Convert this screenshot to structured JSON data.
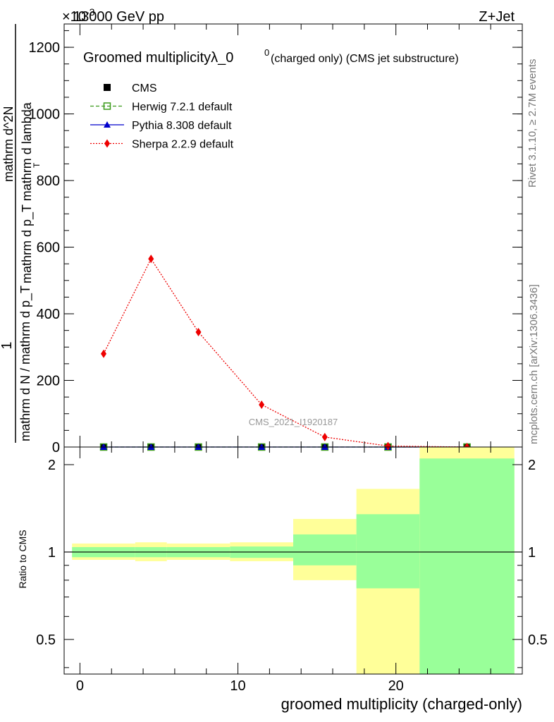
{
  "header": {
    "left": "13000 GeV pp",
    "right": "Z+Jet",
    "exponent_base": "×10",
    "exponent_power": "-3"
  },
  "title": {
    "main": "Groomed multiplicityλ_0",
    "sup": "0",
    "suffix": " (charged only) (CMS jet substructure)"
  },
  "side_labels": {
    "rivet": "Rivet 3.1.10, ≥ 2.7M events",
    "mcplots": "mcplots.cern.ch [arXiv:1306.3436]"
  },
  "watermark": "CMS_2021_I1920187",
  "colors": {
    "cms": "#000000",
    "herwig": "#3a9a1a",
    "pythia": "#0000cc",
    "sherpa": "#ee0000",
    "band_outer": "#ffff99",
    "band_inner": "#99ff99"
  },
  "chart_data": [
    {
      "type": "scatter",
      "panel": "main",
      "ylabel_numerator": "1",
      "ylabel_denominator": "mathrm d N / mathrm d p_T",
      "ylabel_top": "mathrm d^2N",
      "ylabel_bottom": "mathrm d p_T mathrm d lambda",
      "ylabel_sub": "T",
      "ylim": [
        0,
        1270
      ],
      "yticks": [
        0,
        200,
        400,
        600,
        800,
        1000,
        1200
      ],
      "ytick_labels": [
        "0",
        "200",
        "400",
        "600",
        "800",
        "1000",
        "1200"
      ],
      "xlim": [
        -1,
        28
      ],
      "legend_position": "top-left",
      "series": [
        {
          "name": "CMS",
          "key": "cms",
          "marker": "square-filled",
          "x": [
            1.5,
            4.5,
            7.5,
            11.5,
            15.5,
            19.5,
            24.5
          ],
          "y": [
            0,
            0,
            0,
            0,
            0,
            0,
            0
          ]
        },
        {
          "name": "Herwig 7.2.1 default",
          "key": "herwig",
          "marker": "square-open",
          "line": "dashed",
          "x": [
            1.5,
            4.5,
            7.5,
            11.5,
            15.5,
            19.5,
            24.5
          ],
          "y": [
            0,
            0,
            0,
            0,
            0,
            0,
            0
          ]
        },
        {
          "name": "Pythia 8.308 default",
          "key": "pythia",
          "marker": "triangle",
          "line": "solid",
          "x": [
            1.5,
            4.5,
            7.5,
            11.5,
            15.5,
            19.5,
            24.5
          ],
          "y": [
            0,
            0,
            0,
            0,
            0,
            0,
            0
          ]
        },
        {
          "name": "Sherpa 2.2.9 default",
          "key": "sherpa",
          "marker": "diamond",
          "line": "dotted",
          "x": [
            1.5,
            4.5,
            7.5,
            11.5,
            15.5,
            19.5,
            24.5
          ],
          "y": [
            280,
            565,
            345,
            127,
            30,
            3,
            0
          ]
        }
      ]
    },
    {
      "type": "area",
      "panel": "ratio",
      "ylabel": "Ratio to CMS",
      "xlabel": "groomed multiplicity (charged-only)",
      "ylim": [
        0.38,
        2.3
      ],
      "xlim": [
        -1,
        28
      ],
      "yticks": [
        0.5,
        1,
        2
      ],
      "ytick_labels": [
        "0.5",
        "1",
        "2"
      ],
      "xticks": [
        0,
        10,
        20
      ],
      "xtick_labels": [
        "0",
        "10",
        "20"
      ],
      "reference": 1,
      "bins": [
        {
          "lo": -0.5,
          "hi": 3.5,
          "outer": [
            0.94,
            1.07
          ],
          "inner": [
            0.96,
            1.04
          ]
        },
        {
          "lo": 3.5,
          "hi": 5.5,
          "outer": [
            0.93,
            1.08
          ],
          "inner": [
            0.96,
            1.04
          ]
        },
        {
          "lo": 5.5,
          "hi": 9.5,
          "outer": [
            0.94,
            1.07
          ],
          "inner": [
            0.96,
            1.04
          ]
        },
        {
          "lo": 9.5,
          "hi": 13.5,
          "outer": [
            0.93,
            1.08
          ],
          "inner": [
            0.955,
            1.045
          ]
        },
        {
          "lo": 13.5,
          "hi": 17.5,
          "outer": [
            0.8,
            1.3
          ],
          "inner": [
            0.9,
            1.15
          ]
        },
        {
          "lo": 17.5,
          "hi": 21.5,
          "outer": [
            0.37,
            1.65
          ],
          "inner": [
            0.75,
            1.35
          ]
        },
        {
          "lo": 21.5,
          "hi": 27.5,
          "outer": [
            0.37,
            2.3
          ],
          "inner": [
            0.37,
            2.1
          ]
        }
      ]
    }
  ]
}
